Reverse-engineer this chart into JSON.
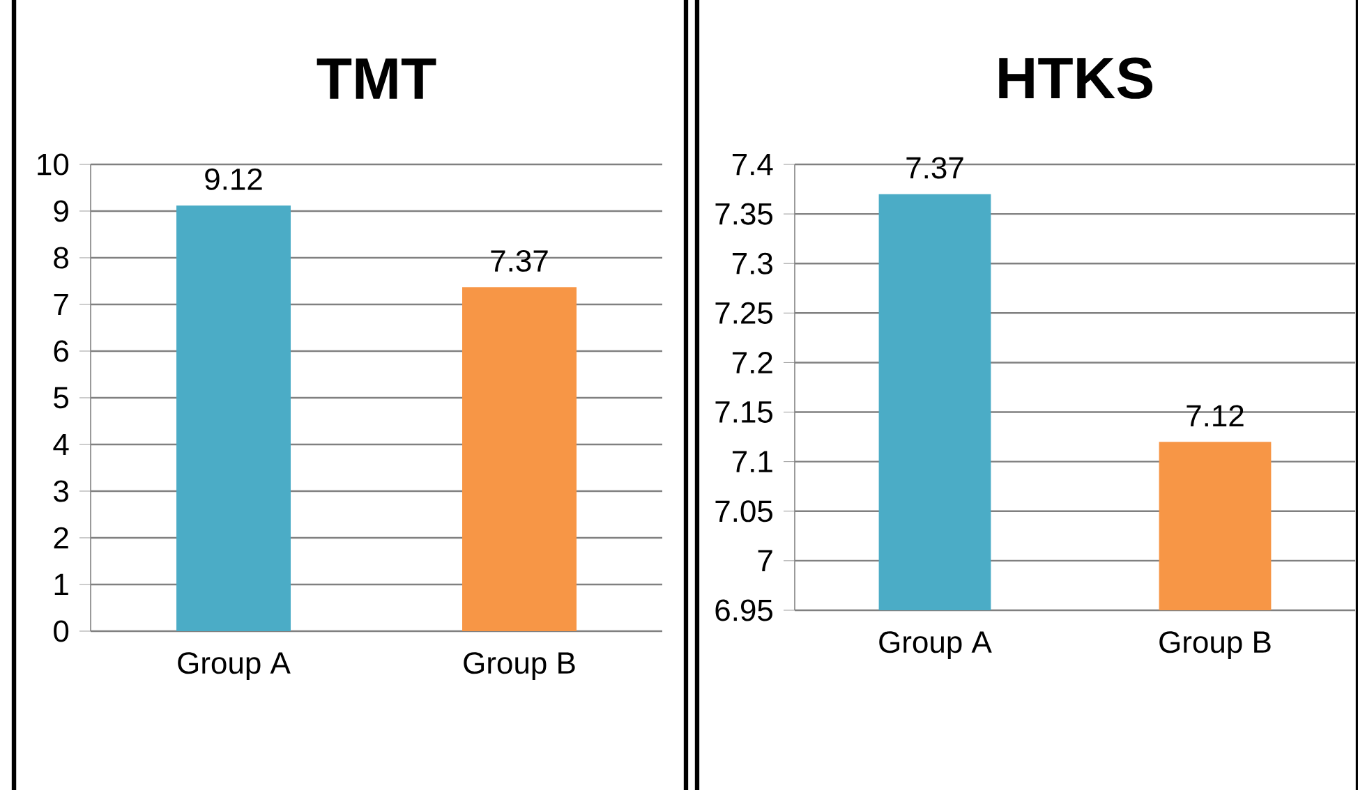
{
  "chart_data": [
    {
      "type": "bar",
      "title": "TMT",
      "categories": [
        "Group A",
        "Group B"
      ],
      "values": [
        9.12,
        7.37
      ],
      "colors": [
        "#4bacc6",
        "#f79646"
      ],
      "ylim": [
        0,
        10
      ],
      "yticks": [
        0,
        1,
        2,
        3,
        4,
        5,
        6,
        7,
        8,
        9,
        10
      ],
      "grid": "y",
      "data_labels": true
    },
    {
      "type": "bar",
      "title": "HTKS",
      "categories": [
        "Group A",
        "Group B"
      ],
      "values": [
        7.37,
        7.12
      ],
      "colors": [
        "#4bacc6",
        "#f79646"
      ],
      "ylim": [
        6.95,
        7.4
      ],
      "yticks": [
        6.95,
        7,
        7.05,
        7.1,
        7.15,
        7.2,
        7.25,
        7.3,
        7.35,
        7.4
      ],
      "grid": "y",
      "data_labels": true
    }
  ]
}
